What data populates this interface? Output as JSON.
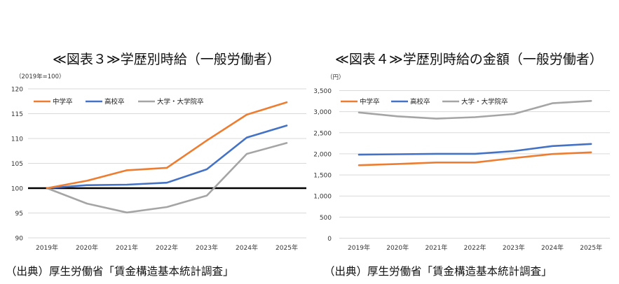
{
  "colors": {
    "series": [
      "#ED7D31",
      "#4472C4",
      "#A5A5A5"
    ],
    "grid": "#D9D9D9",
    "baseline": "#000000"
  },
  "chart_data": [
    {
      "type": "line",
      "title": "≪図表３≫学歴別時給（一般労働者）",
      "unit_label": "（2019年=100）",
      "categories": [
        "2019年",
        "2020年",
        "2021年",
        "2022年",
        "2023年",
        "2024年",
        "2025年"
      ],
      "yticks": [
        "120",
        "115",
        "110",
        "105",
        "100",
        "95",
        "90"
      ],
      "ytick_values": [
        120,
        115,
        110,
        105,
        100,
        95,
        90
      ],
      "ylim": [
        90,
        120
      ],
      "baseline": 100,
      "grid": true,
      "legend": "top",
      "series": [
        {
          "name": "中学卒",
          "values": [
            100,
            101.5,
            103.6,
            104.1,
            109.6,
            114.8,
            117.3
          ]
        },
        {
          "name": "高校卒",
          "values": [
            100,
            100.6,
            100.7,
            101.1,
            103.8,
            110.2,
            112.6
          ]
        },
        {
          "name": "大学・大学院卒",
          "values": [
            100,
            96.9,
            95.1,
            96.2,
            98.5,
            106.9,
            109.1
          ]
        }
      ],
      "source": "（出典）厚生労働省「賃金構造基本統計調査」"
    },
    {
      "type": "line",
      "title": "≪図表４≫学歴別時給の金額（一般労働者）",
      "unit_label": "（円）",
      "categories": [
        "2019年",
        "2020年",
        "2021年",
        "2022年",
        "2023年",
        "2024年",
        "2025年"
      ],
      "yticks": [
        "3,500",
        "3,000",
        "2,500",
        "2,000",
        "1,500",
        "1,000",
        "500",
        "0"
      ],
      "ytick_values": [
        3500,
        3000,
        2500,
        2000,
        1500,
        1000,
        500,
        0
      ],
      "ylim": [
        0,
        3500
      ],
      "grid": true,
      "legend": "top",
      "series": [
        {
          "name": "中学卒",
          "values": [
            1730,
            1760,
            1795,
            1795,
            1900,
            1995,
            2035
          ]
        },
        {
          "name": "高校卒",
          "values": [
            1980,
            1990,
            2000,
            2000,
            2065,
            2185,
            2235
          ]
        },
        {
          "name": "大学・大学院卒",
          "values": [
            2980,
            2890,
            2835,
            2870,
            2945,
            3200,
            3255
          ]
        }
      ],
      "source": "（出典）厚生労働省「賃金構造基本統計調査」"
    }
  ]
}
